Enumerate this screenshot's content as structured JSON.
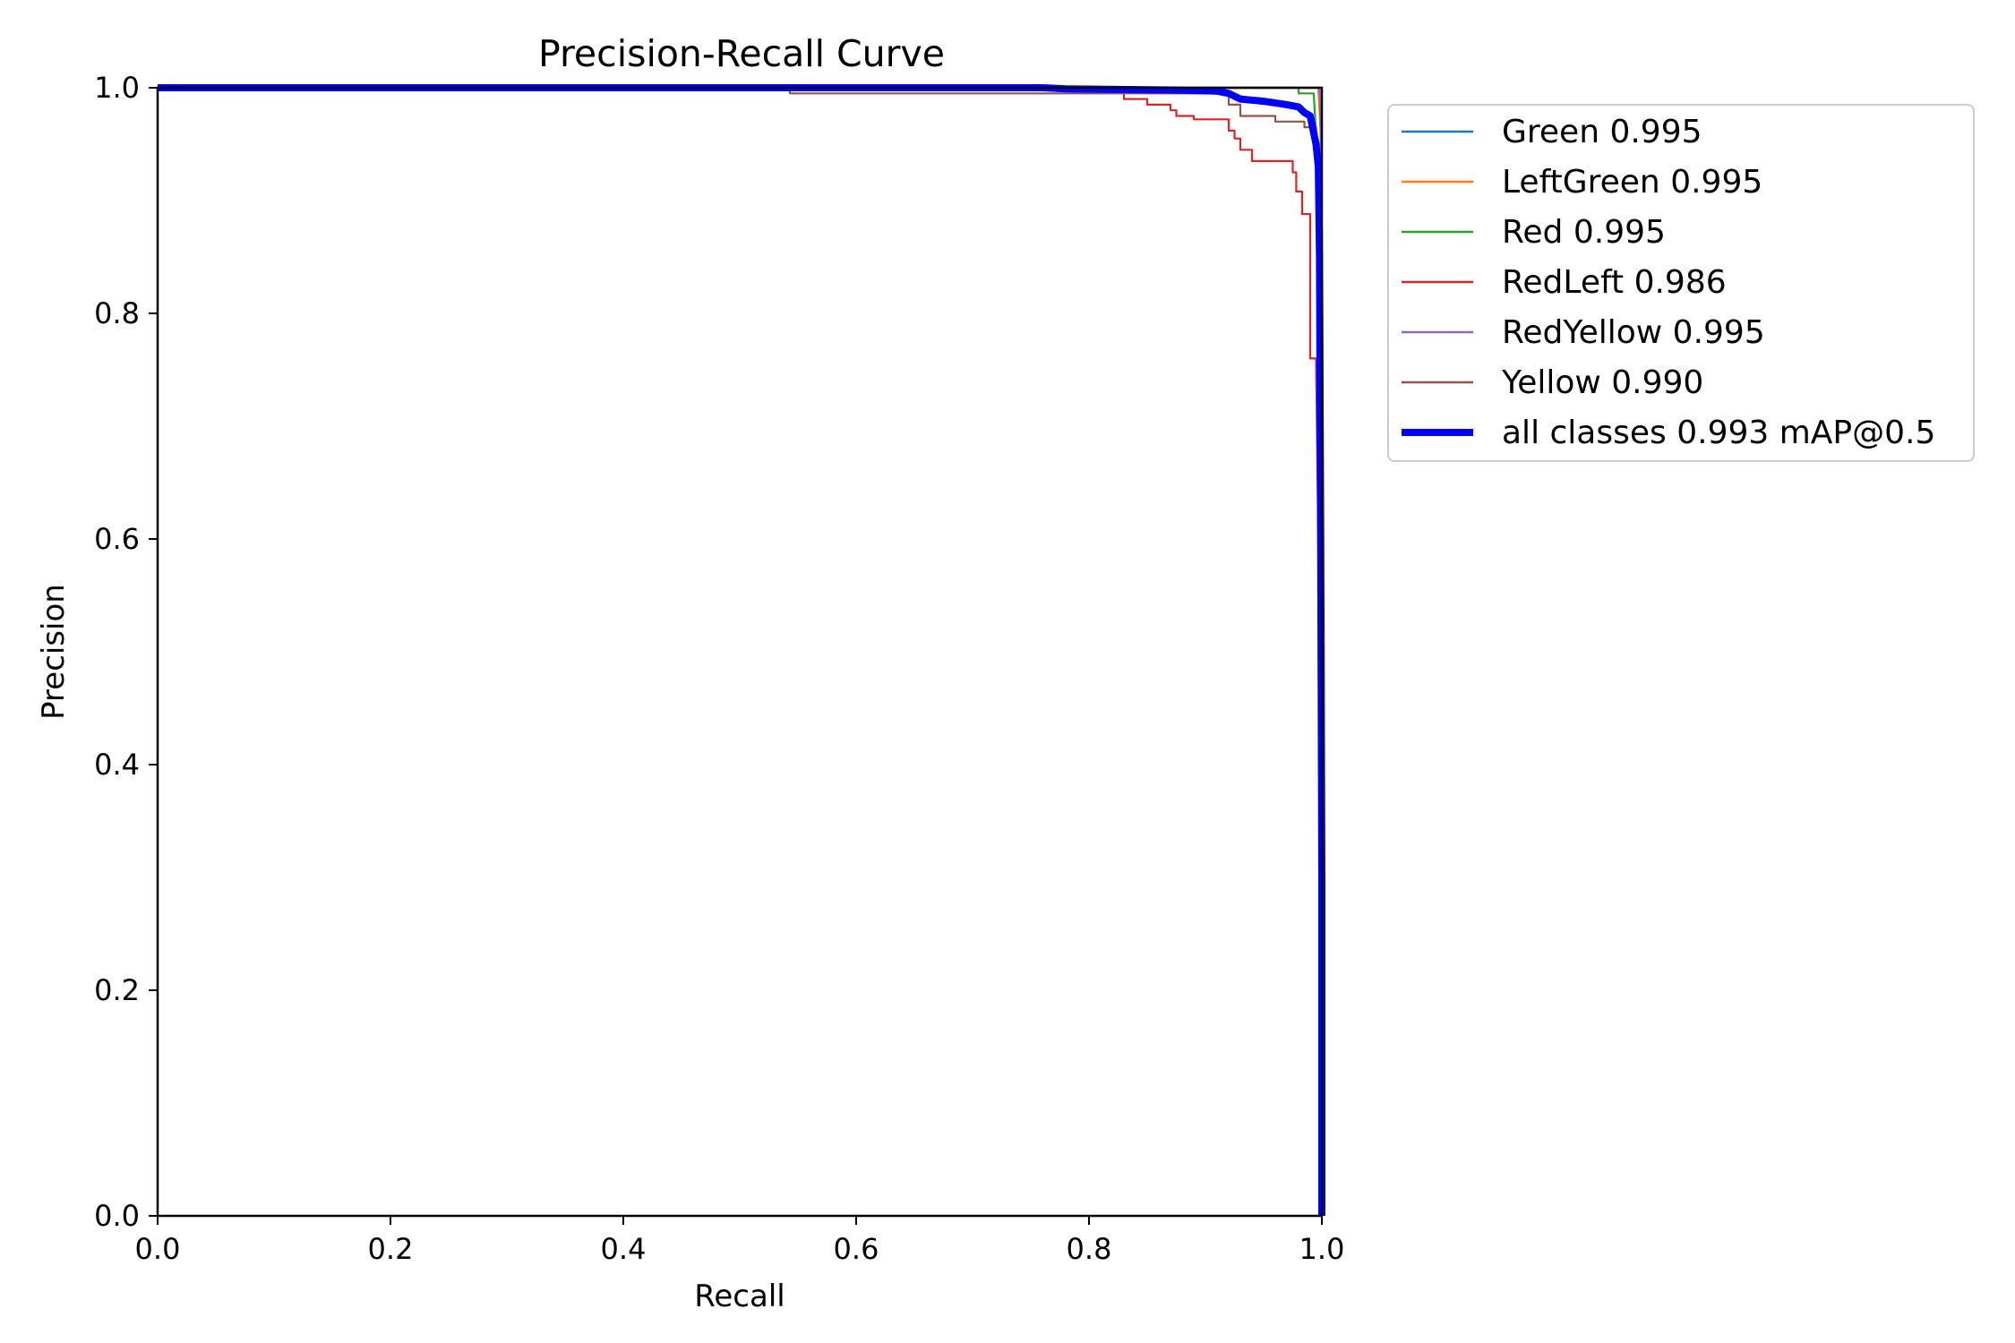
{
  "chart_data": {
    "type": "line",
    "title": "Precision-Recall Curve",
    "xlabel": "Recall",
    "ylabel": "Precision",
    "xlim": [
      0,
      1
    ],
    "ylim": [
      0,
      1
    ],
    "xticks": [
      "0.0",
      "0.2",
      "0.4",
      "0.6",
      "0.8",
      "1.0"
    ],
    "yticks": [
      "0.0",
      "0.2",
      "0.4",
      "0.6",
      "0.8",
      "1.0"
    ],
    "grid": false,
    "legend_position": "outside-top-right",
    "series": [
      {
        "name": "Green 0.995",
        "color": "#1f77b4",
        "points": [
          [
            0,
            1
          ],
          [
            0.997,
            1
          ],
          [
            0.999,
            0.97
          ],
          [
            1.0,
            0.5
          ],
          [
            1.0,
            0
          ]
        ]
      },
      {
        "name": "LeftGreen 0.995",
        "color": "#ff7f0e",
        "points": [
          [
            0,
            1
          ],
          [
            0.997,
            1
          ],
          [
            0.999,
            0.96
          ],
          [
            1.0,
            0.5
          ],
          [
            1.0,
            0
          ]
        ]
      },
      {
        "name": "Red 0.995",
        "color": "#2ca02c",
        "points": [
          [
            0,
            1
          ],
          [
            0.98,
            1
          ],
          [
            0.98,
            0.995
          ],
          [
            0.993,
            0.995
          ],
          [
            0.995,
            0.96
          ],
          [
            1.0,
            0.5
          ],
          [
            1.0,
            0
          ]
        ]
      },
      {
        "name": "RedLeft 0.986",
        "color": "#d62728",
        "points": [
          [
            0,
            1
          ],
          [
            0.8,
            1
          ],
          [
            0.83,
            0.998
          ],
          [
            0.83,
            0.99
          ],
          [
            0.85,
            0.99
          ],
          [
            0.85,
            0.985
          ],
          [
            0.87,
            0.985
          ],
          [
            0.87,
            0.98
          ],
          [
            0.875,
            0.98
          ],
          [
            0.875,
            0.975
          ],
          [
            0.89,
            0.975
          ],
          [
            0.89,
            0.972
          ],
          [
            0.92,
            0.972
          ],
          [
            0.92,
            0.962
          ],
          [
            0.925,
            0.962
          ],
          [
            0.925,
            0.955
          ],
          [
            0.93,
            0.955
          ],
          [
            0.93,
            0.945
          ],
          [
            0.94,
            0.945
          ],
          [
            0.94,
            0.935
          ],
          [
            0.975,
            0.935
          ],
          [
            0.975,
            0.925
          ],
          [
            0.978,
            0.925
          ],
          [
            0.978,
            0.908
          ],
          [
            0.983,
            0.908
          ],
          [
            0.983,
            0.888
          ],
          [
            0.99,
            0.888
          ],
          [
            0.99,
            0.76
          ],
          [
            0.995,
            0.76
          ],
          [
            0.997,
            0.6
          ],
          [
            1.0,
            0.2
          ],
          [
            1.0,
            0
          ]
        ]
      },
      {
        "name": "RedYellow 0.995",
        "color": "#9467bd",
        "points": [
          [
            0,
            1
          ],
          [
            0.998,
            1
          ],
          [
            0.999,
            0.96
          ],
          [
            1.0,
            0.5
          ],
          [
            1.0,
            0
          ]
        ]
      },
      {
        "name": "Yellow 0.990",
        "color": "#8c564b",
        "points": [
          [
            0,
            1
          ],
          [
            0.543,
            1
          ],
          [
            0.543,
            0.995
          ],
          [
            0.92,
            0.995
          ],
          [
            0.92,
            0.985
          ],
          [
            0.93,
            0.985
          ],
          [
            0.93,
            0.975
          ],
          [
            0.96,
            0.975
          ],
          [
            0.96,
            0.97
          ],
          [
            0.985,
            0.97
          ],
          [
            0.985,
            0.965
          ],
          [
            0.995,
            0.965
          ],
          [
            0.996,
            0.95
          ],
          [
            1.0,
            0.5
          ],
          [
            1.0,
            0
          ]
        ]
      },
      {
        "name": "all classes 0.993 mAP@0.5",
        "color": "#0000ff",
        "bold": true,
        "points": [
          [
            0,
            1
          ],
          [
            0.76,
            1
          ],
          [
            0.78,
            0.999
          ],
          [
            0.87,
            0.998
          ],
          [
            0.91,
            0.997
          ],
          [
            0.92,
            0.995
          ],
          [
            0.93,
            0.99
          ],
          [
            0.95,
            0.988
          ],
          [
            0.97,
            0.985
          ],
          [
            0.98,
            0.983
          ],
          [
            0.985,
            0.978
          ],
          [
            0.99,
            0.975
          ],
          [
            0.993,
            0.96
          ],
          [
            0.995,
            0.95
          ],
          [
            0.997,
            0.93
          ],
          [
            0.998,
            0.85
          ],
          [
            0.999,
            0.6
          ],
          [
            1.0,
            0.3
          ],
          [
            1.0,
            0
          ]
        ]
      }
    ]
  }
}
